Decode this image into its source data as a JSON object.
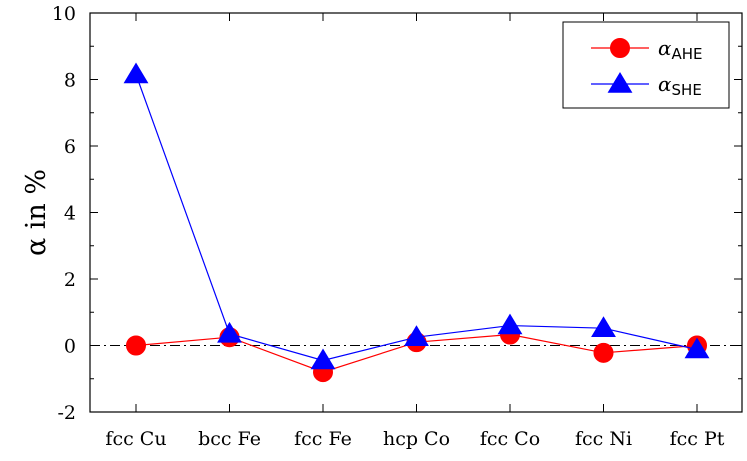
{
  "chart_data": {
    "type": "line",
    "categories": [
      "fcc Cu",
      "bcc Fe",
      "fcc Fe",
      "hcp Co",
      "fcc Co",
      "fcc Ni",
      "fcc Pt"
    ],
    "series": [
      {
        "name": "α_AHE",
        "name_main": "α",
        "name_sub": "AHE",
        "color": "#ff0000",
        "marker": "circle",
        "values": [
          0.0,
          0.25,
          -0.8,
          0.1,
          0.33,
          -0.22,
          0.0
        ]
      },
      {
        "name": "α_SHE",
        "name_main": "α",
        "name_sub": "SHE",
        "color": "#0000ff",
        "marker": "triangle",
        "values": [
          8.15,
          0.35,
          -0.45,
          0.25,
          0.6,
          0.52,
          -0.12
        ]
      }
    ],
    "ylabel": "α in %",
    "xlabel": "",
    "ylim": [
      -2,
      10
    ],
    "yticks": [
      -2,
      0,
      2,
      4,
      6,
      8,
      10
    ],
    "reference_line": 0,
    "legend_position": "top-right",
    "grid": false
  }
}
